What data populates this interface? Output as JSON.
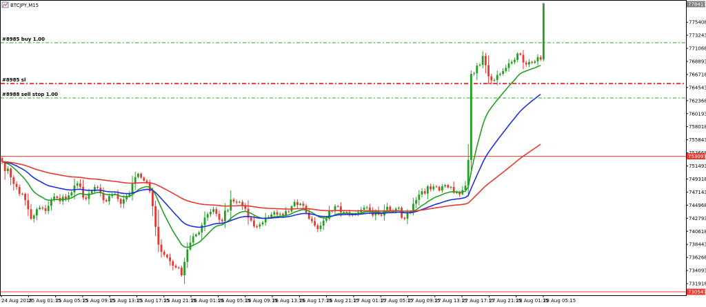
{
  "window": {
    "title": "BTCJPY,M15",
    "icon": "chart-window-icon"
  },
  "chart_data": {
    "type": "candlestick",
    "symbol": "BTCJPY",
    "timeframe": "M15",
    "grid": false,
    "ylim": [
      730547,
      778417
    ],
    "y_ticks": [
      "775408",
      "773243",
      "771068",
      "768893",
      "766718",
      "764543",
      "762368",
      "760193",
      "758018",
      "755843",
      "753668",
      "751493",
      "749318",
      "747143",
      "744968",
      "742793",
      "740618",
      "738443",
      "736268",
      "734093",
      "731918"
    ],
    "x_ticks": [
      "24 Aug 2018",
      "25 Aug 01:15",
      "25 Aug 05:15",
      "25 Aug 09:15",
      "25 Aug 13:15",
      "25 Aug 17:15",
      "25 Aug 21:15",
      "26 Aug 01:15",
      "26 Aug 05:15",
      "26 Aug 09:15",
      "26 Aug 13:15",
      "26 Aug 17:15",
      "26 Aug 21:15",
      "27 Aug 01:15",
      "27 Aug 05:15",
      "27 Aug 09:15",
      "27 Aug 13:15",
      "27 Aug 17:15",
      "27 Aug 21:15",
      "28 Aug 01:15",
      "28 Aug 05:15"
    ],
    "price_tags": [
      {
        "value": 778417,
        "text": "778417",
        "color": "#808080"
      },
      {
        "value": 753097,
        "text": "753097",
        "color": "#e8382f"
      },
      {
        "value": 730547,
        "text": "730547",
        "color": "#e8382f"
      }
    ],
    "order_lines": [
      {
        "label": "#8985 buy 1.00",
        "value": 772000,
        "color": "#22b022"
      },
      {
        "label": "#8985 sl",
        "value": 765200,
        "color": "#e8382f"
      },
      {
        "label": "#8988 sell stop 1.00",
        "value": 762800,
        "color": "#22b022"
      }
    ],
    "ask_line": {
      "value": 753097,
      "color": "#e8382f"
    },
    "bottom_line": {
      "value": 730547,
      "color": "#e8382f"
    },
    "candle_colors": {
      "bull": "#22a022",
      "bear": "#e8382f"
    },
    "anchors": [
      [
        0,
        752200
      ],
      [
        3,
        749600
      ],
      [
        5,
        748000
      ],
      [
        8,
        745800
      ],
      [
        10,
        742700
      ],
      [
        12,
        744300
      ],
      [
        15,
        744000
      ],
      [
        18,
        746400
      ],
      [
        20,
        745600
      ],
      [
        23,
        746600
      ],
      [
        26,
        748600
      ],
      [
        29,
        746000
      ],
      [
        32,
        748000
      ],
      [
        35,
        745800
      ],
      [
        38,
        746800
      ],
      [
        41,
        745200
      ],
      [
        44,
        746800
      ],
      [
        47,
        750200
      ],
      [
        50,
        748800
      ],
      [
        52,
        744800
      ],
      [
        54,
        738400
      ],
      [
        57,
        736300
      ],
      [
        60,
        734600
      ],
      [
        62,
        733300
      ],
      [
        64,
        737600
      ],
      [
        67,
        740100
      ],
      [
        70,
        742900
      ],
      [
        73,
        744300
      ],
      [
        76,
        742300
      ],
      [
        79,
        745900
      ],
      [
        82,
        745500
      ],
      [
        85,
        742900
      ],
      [
        88,
        741400
      ],
      [
        91,
        742900
      ],
      [
        94,
        743800
      ],
      [
        97,
        743300
      ],
      [
        100,
        744800
      ],
      [
        103,
        745200
      ],
      [
        106,
        742700
      ],
      [
        109,
        741000
      ],
      [
        112,
        742700
      ],
      [
        115,
        744800
      ],
      [
        118,
        743800
      ],
      [
        121,
        743400
      ],
      [
        124,
        744200
      ],
      [
        127,
        744000
      ],
      [
        130,
        743400
      ],
      [
        133,
        744700
      ],
      [
        136,
        744400
      ],
      [
        139,
        742700
      ],
      [
        142,
        745200
      ],
      [
        145,
        747300
      ],
      [
        148,
        747600
      ],
      [
        151,
        747400
      ],
      [
        154,
        747900
      ],
      [
        157,
        747100
      ],
      [
        160,
        748200
      ],
      [
        161,
        752500
      ],
      [
        162,
        766800
      ],
      [
        164,
        768200
      ],
      [
        166,
        769800
      ],
      [
        168,
        766400
      ],
      [
        170,
        765800
      ],
      [
        172,
        766800
      ],
      [
        174,
        767800
      ],
      [
        176,
        768800
      ],
      [
        178,
        770200
      ],
      [
        180,
        768700
      ],
      [
        182,
        768800
      ],
      [
        184,
        768900
      ],
      [
        186,
        769200
      ]
    ],
    "last_candle": {
      "open": 769200,
      "high": 778417,
      "low": 768900,
      "close": 778417
    },
    "series": [
      {
        "name": "",
        "color": "#22a022",
        "smoothing": 14
      },
      {
        "name": "",
        "color": "#1b2fe0",
        "smoothing": 34
      },
      {
        "name": "",
        "color": "#e8382f",
        "smoothing": 90
      }
    ]
  }
}
